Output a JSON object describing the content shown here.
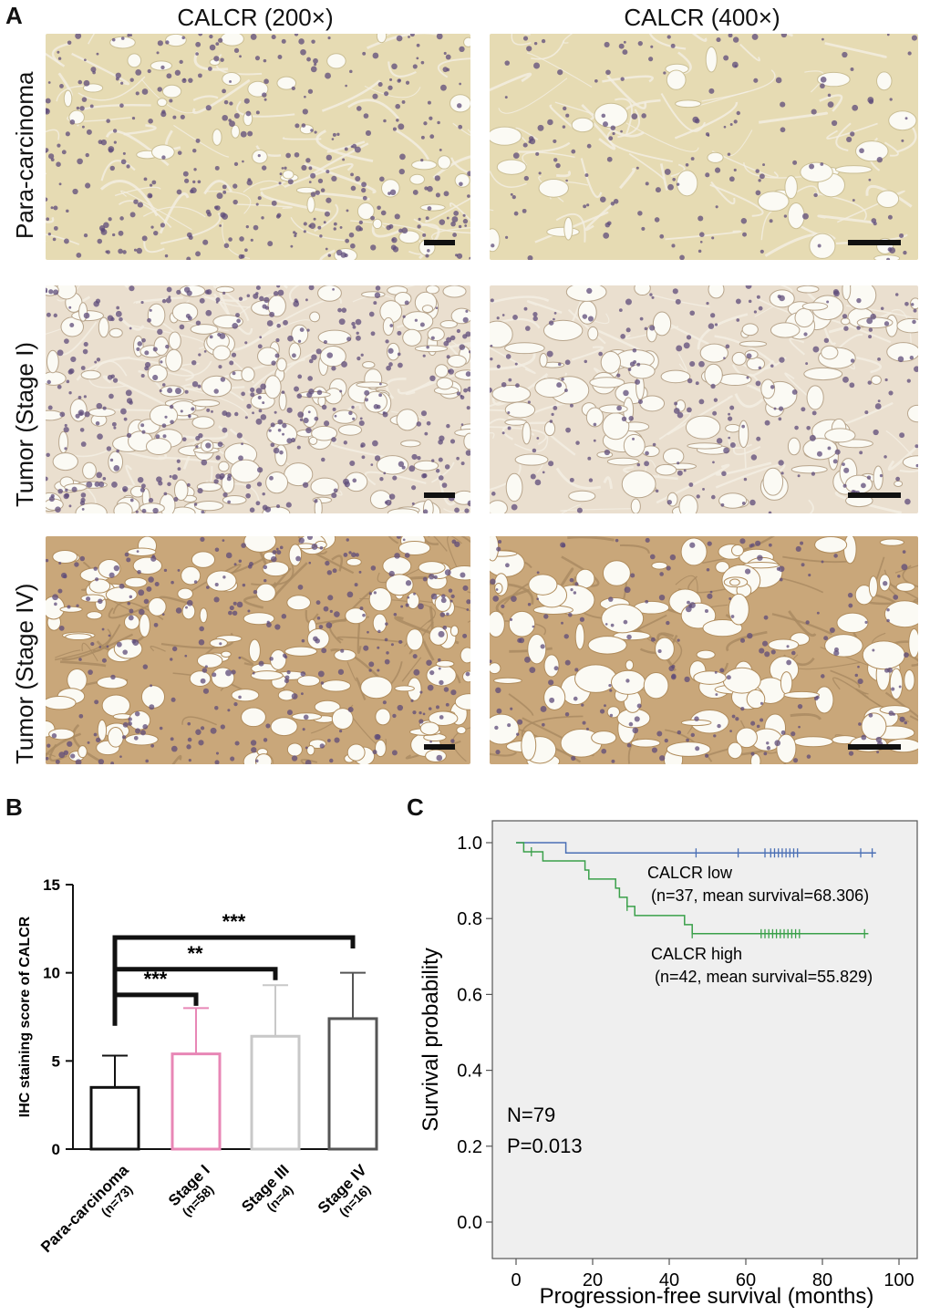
{
  "panelA": {
    "letter": "A",
    "columns": [
      "CALCR (200×)",
      "CALCR (400×)"
    ],
    "rows": [
      "Para-carcinoma",
      "Tumor (Stage I)",
      "Tumor (Stage IV)"
    ]
  },
  "panelB": {
    "letter": "B"
  },
  "panelC": {
    "letter": "C"
  },
  "colors": {
    "para_tissue": "#e6dbb3",
    "stage1_tissue": "#eadfcf",
    "stage4_tissue": "#c9a77a",
    "nuclei": "#5d4b7a",
    "calcr_low": "#4a6fb5",
    "calcr_high": "#3aa04a",
    "km_bg": "#efefef"
  },
  "chart_data": [
    {
      "type": "bar",
      "panel": "B",
      "categories": [
        "Para-carcinoma",
        "Stage I",
        "Stage III",
        "Stage IV"
      ],
      "sample_sizes": [
        "(n=73)",
        "(n=58)",
        "(n=4)",
        "(n=16)"
      ],
      "values": [
        3.5,
        5.4,
        6.4,
        7.4
      ],
      "errors": [
        1.8,
        2.6,
        2.9,
        2.6
      ],
      "bar_colors": [
        "#111111",
        "#e887b6",
        "#c8c8c8",
        "#555555"
      ],
      "ylabel": "IHC staining score of CALCR",
      "ylim": [
        0,
        15
      ],
      "yticks": [
        0,
        5,
        10,
        15
      ],
      "significance": [
        {
          "from": "Para-carcinoma",
          "to": "Stage I",
          "label": "***"
        },
        {
          "from": "Para-carcinoma",
          "to": "Stage III",
          "label": "**"
        },
        {
          "from": "Para-carcinoma",
          "to": "Stage IV",
          "label": "***"
        }
      ]
    },
    {
      "type": "line",
      "panel": "C",
      "xlabel": "Progression-free survival (months)",
      "ylabel": "Survival probability",
      "xlim": [
        0,
        100
      ],
      "ylim": [
        0,
        1
      ],
      "xticks": [
        0,
        20,
        40,
        60,
        80,
        100
      ],
      "yticks": [
        "0.0",
        "0.2",
        "0.4",
        "0.6",
        "0.8",
        "1.0"
      ],
      "series": [
        {
          "name": "CALCR low",
          "detail": "(n=37, mean survival=68.306)",
          "steps": [
            [
              0,
              1.0
            ],
            [
              13,
              1.0
            ],
            [
              13,
              0.973
            ],
            [
              94,
              0.973
            ]
          ],
          "censored": [
            47,
            58,
            65,
            66.5,
            67.5,
            68.5,
            69.5,
            70.5,
            71.5,
            72.5,
            73.5,
            90,
            93
          ]
        },
        {
          "name": "CALCR high",
          "detail": "(n=42, mean survival=55.829)",
          "steps": [
            [
              0,
              1.0
            ],
            [
              2,
              1.0
            ],
            [
              2,
              0.976
            ],
            [
              7,
              0.976
            ],
            [
              7,
              0.952
            ],
            [
              18,
              0.952
            ],
            [
              18,
              0.928
            ],
            [
              19,
              0.928
            ],
            [
              19,
              0.904
            ],
            [
              26,
              0.904
            ],
            [
              26,
              0.88
            ],
            [
              27,
              0.88
            ],
            [
              27,
              0.856
            ],
            [
              29,
              0.856
            ],
            [
              29,
              0.832
            ],
            [
              31,
              0.832
            ],
            [
              31,
              0.808
            ],
            [
              44,
              0.808
            ],
            [
              44,
              0.784
            ],
            [
              46,
              0.784
            ],
            [
              46,
              0.76
            ],
            [
              92,
              0.76
            ]
          ],
          "censored": [
            4,
            29,
            46,
            64,
            65,
            66,
            67,
            68,
            69,
            70,
            71,
            72,
            73,
            74,
            91
          ]
        }
      ],
      "annotations": [
        "N=79",
        "P=0.013"
      ]
    }
  ]
}
